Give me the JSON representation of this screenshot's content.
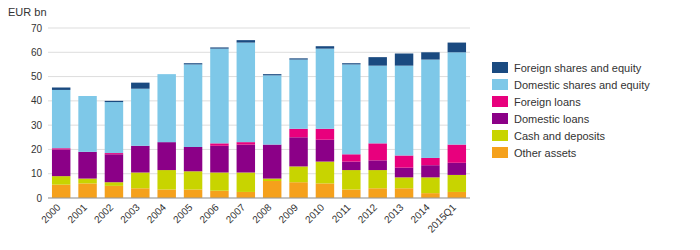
{
  "chart_data": {
    "type": "bar",
    "stacked": true,
    "y_label": "EUR bn",
    "categories": [
      "2000",
      "2001",
      "2002",
      "2003",
      "2004",
      "2005",
      "2006",
      "2007",
      "2008",
      "2009",
      "2010",
      "2011",
      "2012",
      "2013",
      "2014",
      "2015Q1"
    ],
    "series": [
      {
        "name": "Other assets",
        "color": "#F5A11C",
        "values": [
          5.5,
          6.0,
          5.0,
          4.0,
          3.5,
          3.5,
          3.0,
          2.5,
          7.0,
          6.5,
          6.0,
          3.5,
          4.0,
          4.0,
          2.0,
          2.5
        ]
      },
      {
        "name": "Cash and deposits",
        "color": "#C8D400",
        "values": [
          3.5,
          2.0,
          1.5,
          6.5,
          8.0,
          7.5,
          7.5,
          8.0,
          1.0,
          6.5,
          9.0,
          8.0,
          7.5,
          4.5,
          6.5,
          7.0
        ]
      },
      {
        "name": "Domestic loans",
        "color": "#8B0087",
        "values": [
          11.0,
          11.0,
          11.5,
          11.0,
          11.5,
          10.0,
          11.0,
          11.5,
          14.0,
          12.0,
          9.0,
          3.5,
          4.0,
          4.0,
          5.0,
          5.0
        ]
      },
      {
        "name": "Foreign loans",
        "color": "#E8007D",
        "values": [
          0.5,
          0.0,
          0.5,
          0.0,
          0.0,
          0.0,
          1.0,
          1.0,
          0.0,
          3.5,
          4.5,
          3.0,
          7.0,
          5.0,
          3.0,
          7.5
        ]
      },
      {
        "name": "Domestic shares and equity",
        "color": "#7EC8E8",
        "values": [
          24.0,
          23.0,
          21.0,
          23.5,
          28.0,
          34.0,
          39.0,
          41.0,
          28.5,
          28.5,
          33.0,
          37.0,
          32.0,
          37.0,
          40.5,
          38.0
        ]
      },
      {
        "name": "Foreign shares and equity",
        "color": "#1A4A80",
        "values": [
          1.0,
          0.0,
          0.5,
          2.5,
          0.0,
          0.5,
          0.5,
          1.0,
          0.5,
          0.5,
          1.0,
          0.5,
          3.5,
          5.0,
          3.0,
          4.0
        ]
      }
    ],
    "ylim": [
      0,
      70
    ],
    "yticks": [
      0,
      10,
      20,
      30,
      40,
      50,
      60,
      70
    ],
    "grid": true,
    "legend": "right"
  }
}
